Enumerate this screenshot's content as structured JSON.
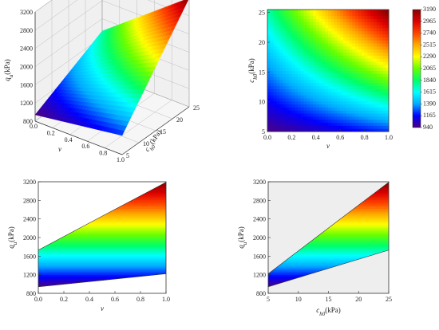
{
  "colors": {
    "colormap": [
      "#4b0082",
      "#0000ff",
      "#00aaff",
      "#00ffff",
      "#00ff66",
      "#66ff00",
      "#ffff00",
      "#ffaa00",
      "#ff4400",
      "#dd0000",
      "#880000"
    ],
    "grid": "#b0b0b0",
    "panel_bg_gray": "#eeeeee"
  },
  "chart_data": [
    {
      "id": "3d-surface",
      "type": "surface",
      "formula_points": [
        {
          "v": 0,
          "c_h0": 5,
          "q_u": 940
        },
        {
          "v": 1,
          "c_h0": 5,
          "q_u": 1220
        },
        {
          "v": 0,
          "c_h0": 25,
          "q_u": 1730
        },
        {
          "v": 1,
          "c_h0": 25,
          "q_u": 3190
        }
      ],
      "z_label": "q",
      "z_label_sub": "u",
      "z_label_unit": "(kPa)",
      "x_label": "v",
      "y_label": "c",
      "y_label_sub": "h0",
      "y_label_unit": "(kPa)",
      "z_ticks": [
        "800",
        "1200",
        "1600",
        "2000",
        "2400",
        "2800",
        "3200"
      ],
      "x_ticks": [
        "0.0",
        "0.2",
        "0.4",
        "0.6",
        "0.8",
        "1.0"
      ],
      "y_ticks": [
        "5",
        "10",
        "15",
        "20",
        "25"
      ],
      "zlim": [
        800,
        3200
      ]
    },
    {
      "id": "contour",
      "type": "heatmap",
      "x_label": "v",
      "y_label": "c",
      "y_label_sub": "h0",
      "y_label_unit": "(kPa)",
      "x_ticks": [
        "0.0",
        "0.2",
        "0.4",
        "0.6",
        "0.8",
        "1.0"
      ],
      "y_ticks": [
        "5",
        "10",
        "15",
        "20",
        "25"
      ],
      "xlim": [
        0,
        1
      ],
      "ylim": [
        5,
        25.5
      ],
      "colorbar_ticks": [
        "3190",
        "2965",
        "2740",
        "2515",
        "2290",
        "2065",
        "1840",
        "1615",
        "1390",
        "1165",
        "940"
      ],
      "colorbar_range": [
        940,
        3190
      ]
    },
    {
      "id": "proj-v",
      "type": "area",
      "x_label": "v",
      "y_label": "q",
      "y_label_sub": "u",
      "y_label_unit": "(kPa)",
      "x_ticks": [
        "0.0",
        "0.2",
        "0.4",
        "0.6",
        "0.8",
        "1.0"
      ],
      "y_ticks": [
        "800",
        "1200",
        "1600",
        "2000",
        "2400",
        "2800",
        "3200"
      ],
      "xlim": [
        0,
        1
      ],
      "ylim": [
        800,
        3200
      ],
      "lower": {
        "x": [
          0,
          1
        ],
        "y": [
          940,
          1220
        ]
      },
      "upper": {
        "x": [
          0,
          1
        ],
        "y": [
          1730,
          3190
        ]
      }
    },
    {
      "id": "proj-c",
      "type": "area",
      "x_label": "c",
      "x_label_sub": "h0",
      "x_label_unit": "(kPa)",
      "y_label": "q",
      "y_label_sub": "u",
      "y_label_unit": "(kPa)",
      "x_ticks": [
        "5",
        "10",
        "15",
        "20",
        "25"
      ],
      "y_ticks": [
        "800",
        "1200",
        "1600",
        "2000",
        "2400",
        "2800",
        "3200"
      ],
      "xlim": [
        5,
        25
      ],
      "ylim": [
        800,
        3200
      ],
      "lower": {
        "x": [
          5,
          25
        ],
        "y": [
          940,
          1730
        ]
      },
      "upper": {
        "x": [
          5,
          25
        ],
        "y": [
          1220,
          3190
        ]
      }
    }
  ]
}
